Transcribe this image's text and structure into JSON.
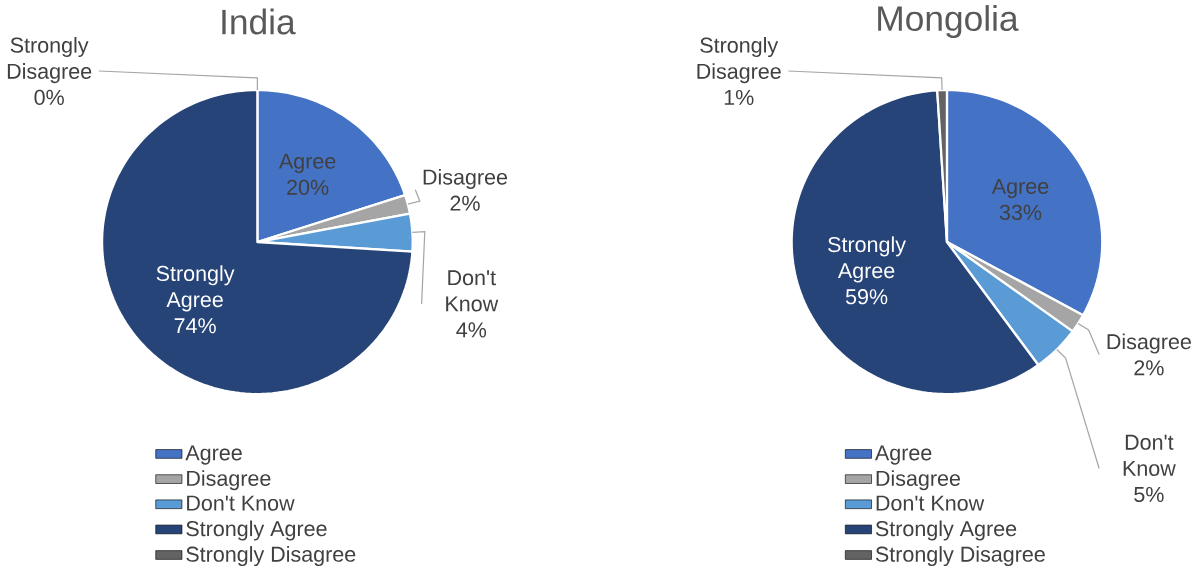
{
  "chart_data": [
    {
      "type": "pie",
      "title": "India",
      "categories": [
        "Agree",
        "Disagree",
        "Don't Know",
        "Strongly Agree",
        "Strongly Disagree"
      ],
      "values": [
        20,
        2,
        4,
        74,
        0
      ],
      "value_labels": [
        "20%",
        "2%",
        "4%",
        "74%",
        "0%"
      ],
      "colors": [
        "#4472c4",
        "#a5a5a5",
        "#5b9bd5",
        "#264478",
        "#636363"
      ],
      "legend": "bottom"
    },
    {
      "type": "pie",
      "title": "Mongolia",
      "categories": [
        "Agree",
        "Disagree",
        "Don't Know",
        "Strongly Agree",
        "Strongly Disagree"
      ],
      "values": [
        33,
        2,
        5,
        59,
        1
      ],
      "value_labels": [
        "33%",
        "2%",
        "5%",
        "59%",
        "1%"
      ],
      "colors": [
        "#4472c4",
        "#a5a5a5",
        "#5b9bd5",
        "#264478",
        "#636363"
      ],
      "legend": "bottom"
    }
  ]
}
